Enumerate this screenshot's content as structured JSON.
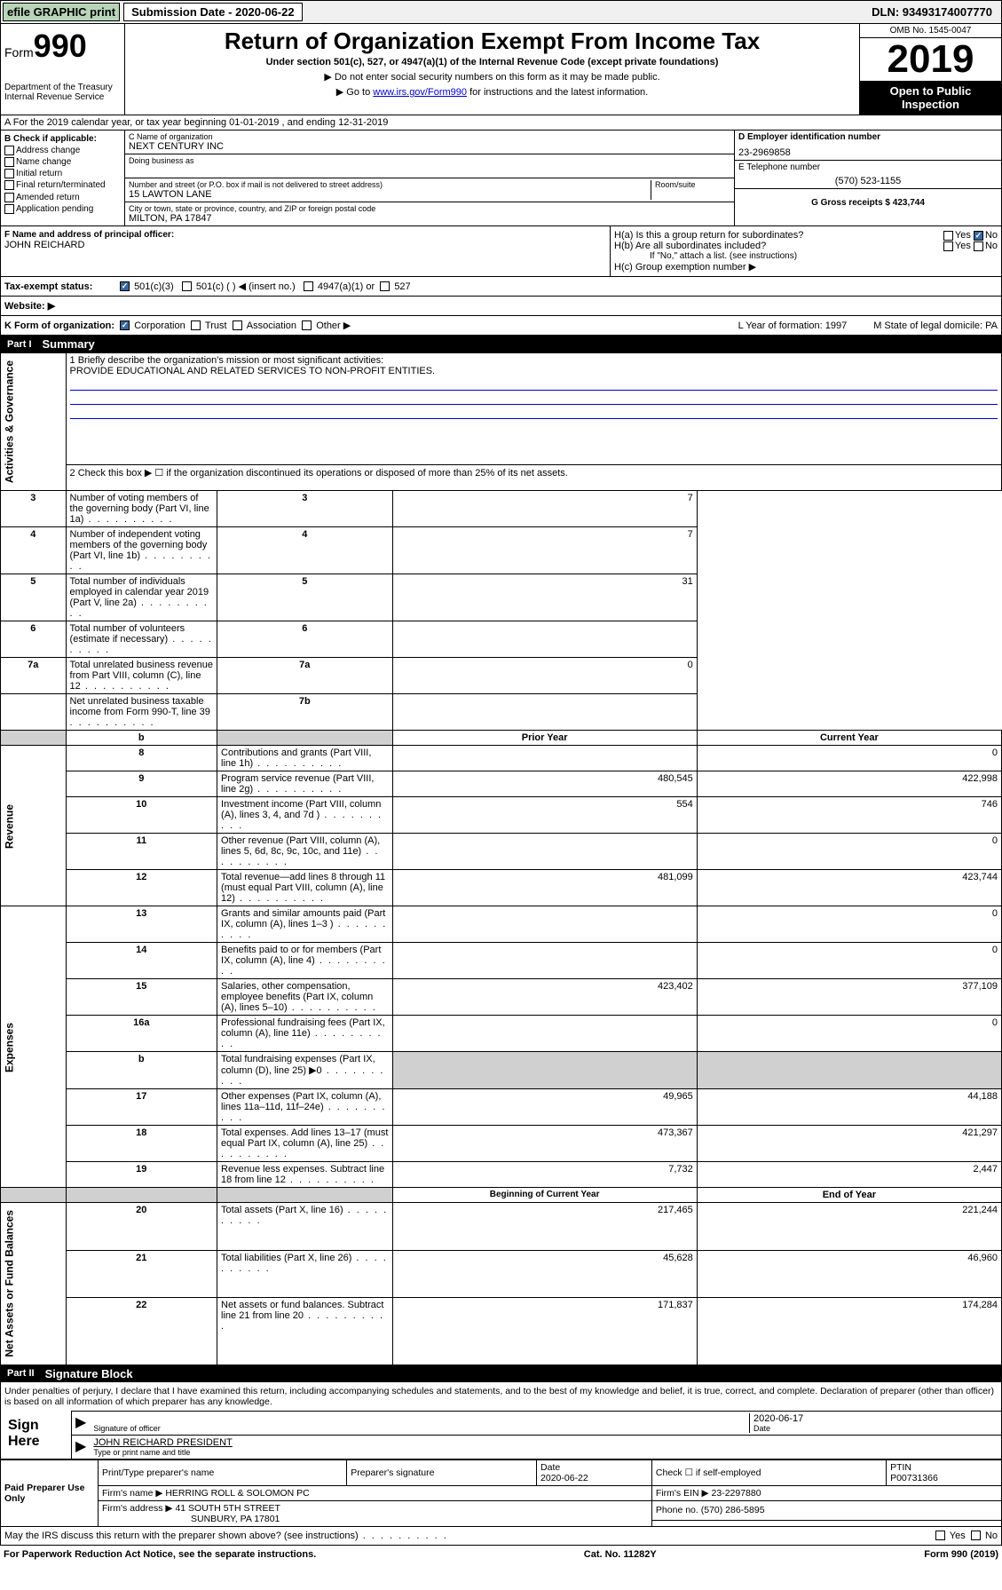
{
  "topbar": {
    "efile": "efile GRAPHIC print",
    "submission_label": "Submission Date - 2020-06-22",
    "dln": "DLN: 93493174007770"
  },
  "header": {
    "form_prefix": "Form",
    "form_num": "990",
    "dept": "Department of the Treasury Internal Revenue Service",
    "title": "Return of Organization Exempt From Income Tax",
    "subtitle": "Under section 501(c), 527, or 4947(a)(1) of the Internal Revenue Code (except private foundations)",
    "note1": "▶ Do not enter social security numbers on this form as it may be made public.",
    "note2_pre": "▶ Go to ",
    "note2_link": "www.irs.gov/Form990",
    "note2_post": " for instructions and the latest information.",
    "omb": "OMB No. 1545-0047",
    "year": "2019",
    "open": "Open to Public Inspection"
  },
  "row_a": "A For the 2019 calendar year, or tax year beginning 01-01-2019   , and ending 12-31-2019",
  "col_b": {
    "hdr": "B Check if applicable:",
    "items": [
      "Address change",
      "Name change",
      "Initial return",
      "Final return/terminated",
      "Amended return",
      "Application pending"
    ]
  },
  "col_c": {
    "name_lbl": "C Name of organization",
    "name": "NEXT CENTURY INC",
    "dba_lbl": "Doing business as",
    "addr_lbl": "Number and street (or P.O. box if mail is not delivered to street address)",
    "room_lbl": "Room/suite",
    "addr": "15 LAWTON LANE",
    "city_lbl": "City or town, state or province, country, and ZIP or foreign postal code",
    "city": "MILTON, PA  17847"
  },
  "col_d": {
    "ein_lbl": "D Employer identification number",
    "ein": "23-2969858",
    "tel_lbl": "E Telephone number",
    "tel": "(570) 523-1155",
    "gross_lbl": "G Gross receipts $ 423,744"
  },
  "row_f": {
    "lbl": "F  Name and address of principal officer:",
    "val": "JOHN REICHARD"
  },
  "row_h": {
    "a": "H(a)  Is this a group return for subordinates?",
    "b": "H(b)  Are all subordinates included?",
    "c": "H(c)  Group exemption number ▶",
    "note": "If \"No,\" attach a list. (see instructions)",
    "yes": "Yes",
    "no": "No"
  },
  "row_i": {
    "lbl": "Tax-exempt status:",
    "o1": "501(c)(3)",
    "o2": "501(c) (  ) ◀ (insert no.)",
    "o3": "4947(a)(1) or",
    "o4": "527"
  },
  "row_j": {
    "lbl": "Website: ▶"
  },
  "row_k": {
    "lbl": "K Form of organization:",
    "o1": "Corporation",
    "o2": "Trust",
    "o3": "Association",
    "o4": "Other ▶",
    "l": "L Year of formation: 1997",
    "m": "M State of legal domicile: PA"
  },
  "part1": {
    "num": "Part I",
    "title": "Summary"
  },
  "summary": {
    "line1_lbl": "1  Briefly describe the organization's mission or most significant activities:",
    "line1_val": "PROVIDE EDUCATIONAL AND RELATED SERVICES TO NON-PROFIT ENTITIES.",
    "line2": "2  Check this box ▶ ☐  if the organization discontinued its operations or disposed of more than 25% of its net assets.",
    "rows_ag": [
      {
        "n": "3",
        "t": "Number of voting members of the governing body (Part VI, line 1a)",
        "rn": "3",
        "v": "7"
      },
      {
        "n": "4",
        "t": "Number of independent voting members of the governing body (Part VI, line 1b)",
        "rn": "4",
        "v": "7"
      },
      {
        "n": "5",
        "t": "Total number of individuals employed in calendar year 2019 (Part V, line 2a)",
        "rn": "5",
        "v": "31"
      },
      {
        "n": "6",
        "t": "Total number of volunteers (estimate if necessary)",
        "rn": "6",
        "v": ""
      },
      {
        "n": "7a",
        "t": "Total unrelated business revenue from Part VIII, column (C), line 12",
        "rn": "7a",
        "v": "0"
      },
      {
        "n": "",
        "t": "Net unrelated business taxable income from Form 990-T, line 39",
        "rn": "7b",
        "v": ""
      }
    ],
    "hdr_b": "b",
    "hdr_prior": "Prior Year",
    "hdr_curr": "Current Year",
    "rows_rev": [
      {
        "n": "8",
        "t": "Contributions and grants (Part VIII, line 1h)",
        "p": "",
        "c": "0"
      },
      {
        "n": "9",
        "t": "Program service revenue (Part VIII, line 2g)",
        "p": "480,545",
        "c": "422,998"
      },
      {
        "n": "10",
        "t": "Investment income (Part VIII, column (A), lines 3, 4, and 7d )",
        "p": "554",
        "c": "746"
      },
      {
        "n": "11",
        "t": "Other revenue (Part VIII, column (A), lines 5, 6d, 8c, 9c, 10c, and 11e)",
        "p": "",
        "c": "0"
      },
      {
        "n": "12",
        "t": "Total revenue—add lines 8 through 11 (must equal Part VIII, column (A), line 12)",
        "p": "481,099",
        "c": "423,744"
      }
    ],
    "rows_exp": [
      {
        "n": "13",
        "t": "Grants and similar amounts paid (Part IX, column (A), lines 1–3 )",
        "p": "",
        "c": "0"
      },
      {
        "n": "14",
        "t": "Benefits paid to or for members (Part IX, column (A), line 4)",
        "p": "",
        "c": "0"
      },
      {
        "n": "15",
        "t": "Salaries, other compensation, employee benefits (Part IX, column (A), lines 5–10)",
        "p": "423,402",
        "c": "377,109"
      },
      {
        "n": "16a",
        "t": "Professional fundraising fees (Part IX, column (A), line 11e)",
        "p": "",
        "c": "0"
      },
      {
        "n": "b",
        "t": "Total fundraising expenses (Part IX, column (D), line 25) ▶0",
        "p": "",
        "c": "",
        "gray": true
      },
      {
        "n": "17",
        "t": "Other expenses (Part IX, column (A), lines 11a–11d, 11f–24e)",
        "p": "49,965",
        "c": "44,188"
      },
      {
        "n": "18",
        "t": "Total expenses. Add lines 13–17 (must equal Part IX, column (A), line 25)",
        "p": "473,367",
        "c": "421,297"
      },
      {
        "n": "19",
        "t": "Revenue less expenses. Subtract line 18 from line 12",
        "p": "7,732",
        "c": "2,447"
      }
    ],
    "hdr_beg": "Beginning of Current Year",
    "hdr_end": "End of Year",
    "rows_na": [
      {
        "n": "20",
        "t": "Total assets (Part X, line 16)",
        "p": "217,465",
        "c": "221,244"
      },
      {
        "n": "21",
        "t": "Total liabilities (Part X, line 26)",
        "p": "45,628",
        "c": "46,960"
      },
      {
        "n": "22",
        "t": "Net assets or fund balances. Subtract line 21 from line 20",
        "p": "171,837",
        "c": "174,284"
      }
    ],
    "side_ag": "Activities & Governance",
    "side_rev": "Revenue",
    "side_exp": "Expenses",
    "side_na": "Net Assets or Fund Balances"
  },
  "part2": {
    "num": "Part II",
    "title": "Signature Block"
  },
  "sig": {
    "decl": "Under penalties of perjury, I declare that I have examined this return, including accompanying schedules and statements, and to the best of my knowledge and belief, it is true, correct, and complete. Declaration of preparer (other than officer) is based on all information of which preparer has any knowledge.",
    "sign_here": "Sign Here",
    "sig_officer": "Signature of officer",
    "date": "2020-06-17",
    "date_lbl": "Date",
    "name": "JOHN REICHARD PRESIDENT",
    "name_lbl": "Type or print name and title"
  },
  "prep": {
    "left": "Paid Preparer Use Only",
    "h1": "Print/Type preparer's name",
    "h2": "Preparer's signature",
    "h3": "Date",
    "h3v": "2020-06-22",
    "h4": "Check ☐ if self-employed",
    "h5": "PTIN",
    "h5v": "P00731366",
    "firm_lbl": "Firm's name    ▶",
    "firm": "HERRING ROLL & SOLOMON PC",
    "ein_lbl": "Firm's EIN ▶",
    "ein": "23-2297880",
    "addr_lbl": "Firm's address ▶",
    "addr1": "41 SOUTH 5TH STREET",
    "addr2": "SUNBURY, PA  17801",
    "phone_lbl": "Phone no.",
    "phone": "(570) 286-5895"
  },
  "footer": {
    "discuss": "May the IRS discuss this return with the preparer shown above? (see instructions)",
    "yes": "Yes",
    "no": "No",
    "paperwork": "For Paperwork Reduction Act Notice, see the separate instructions.",
    "cat": "Cat. No. 11282Y",
    "form": "Form 990 (2019)"
  }
}
